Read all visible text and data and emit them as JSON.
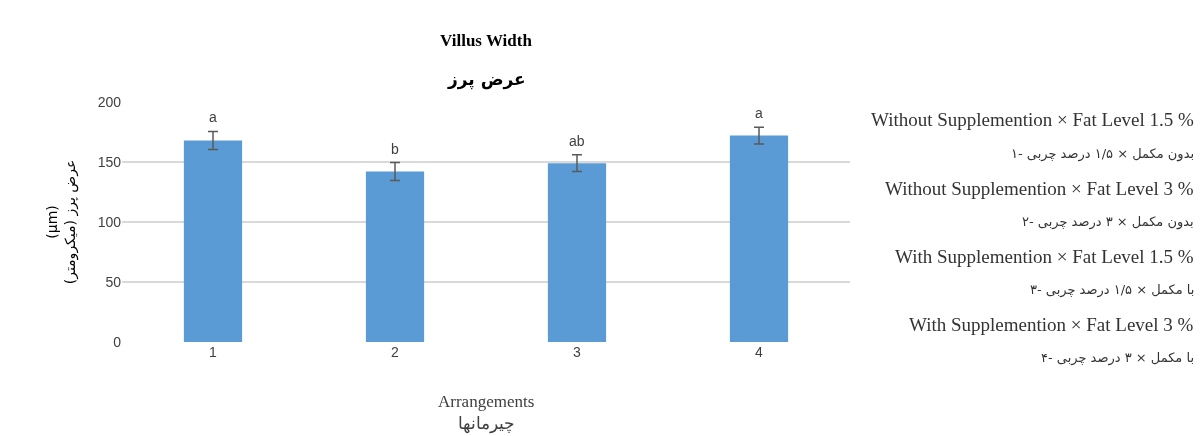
{
  "chart_data": {
    "type": "bar",
    "title": "Villus Width",
    "subtitle": "عرض پرز",
    "xlabel": "Arrangements\nچیرمانها",
    "ylabel": "(µm)\nعرض پرز (میکرومتر)",
    "categories": [
      "1",
      "2",
      "3",
      "4"
    ],
    "values": [
      168,
      142,
      149,
      172
    ],
    "color": "#5b9bd5",
    "errors": [
      7.5,
      7.5,
      7,
      7
    ],
    "ylim": [
      0,
      200
    ],
    "yticks": [
      0,
      50,
      100,
      150,
      200
    ],
    "grid": "y",
    "annotations": [
      {
        "text": "a",
        "x": "1",
        "y": 175.5
      },
      {
        "text": "b",
        "x": "2",
        "y": 149.5
      },
      {
        "text": "ab",
        "x": "3",
        "y": 156
      },
      {
        "text": "a",
        "x": "4",
        "y": 179
      },
      "Without Supplemention × Fat Level 1.5 %",
      "۱- بدون مکمل × ۱/۵ درصد چربی",
      "Without Supplemention × Fat Level 3 %",
      "۲- بدون مکمل × ۳ درصد چربی",
      "With Supplemention × Fat Level 1.5 %",
      "۳- با مکمل × ۱/۵ درصد چربی",
      "With Supplemention × Fat Level 3 %",
      "۴- با مکمل × ۳ درصد چربی"
    ]
  }
}
